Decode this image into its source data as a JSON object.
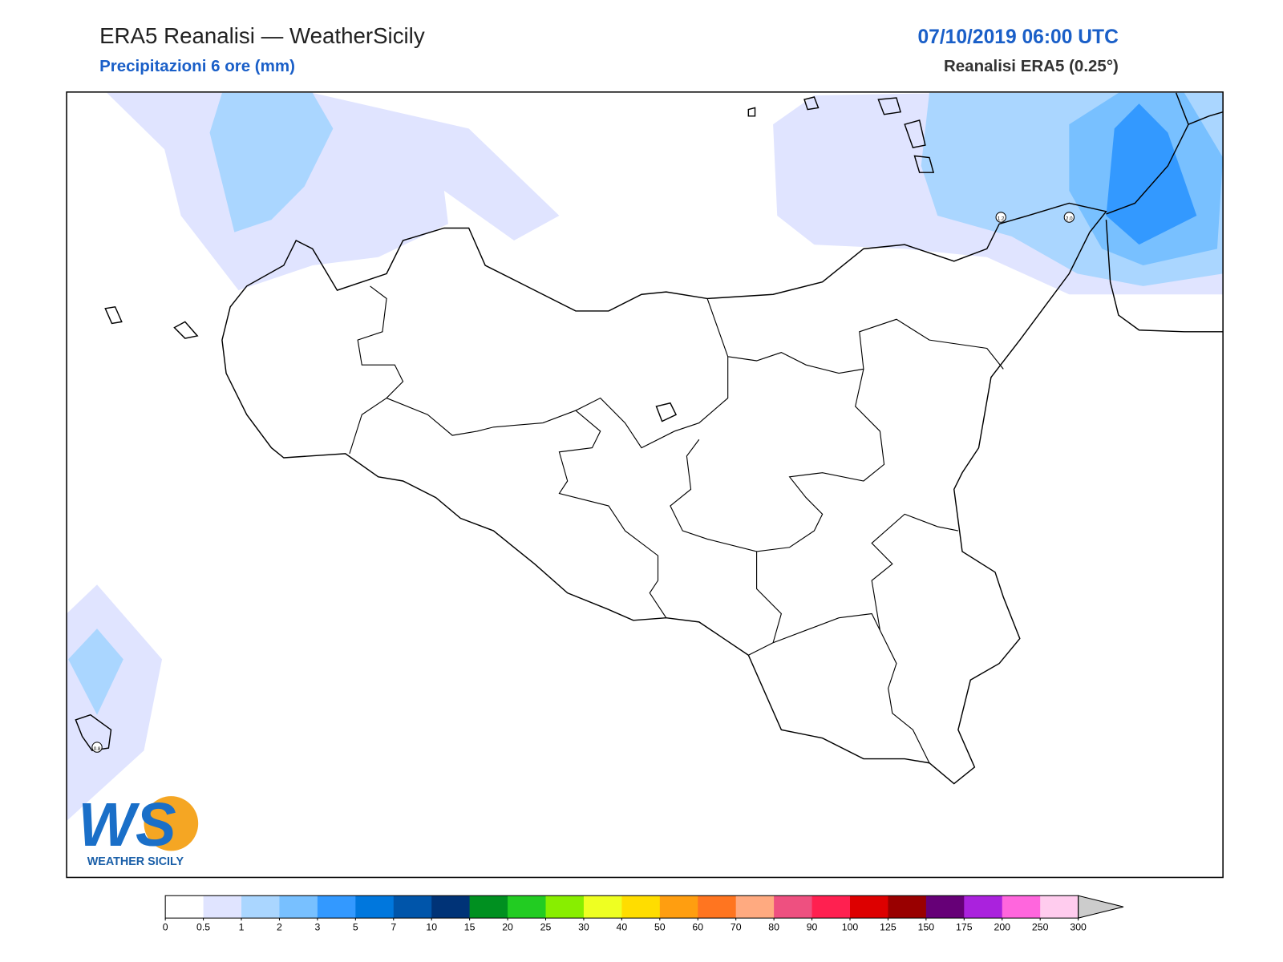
{
  "header": {
    "title": "ERA5 Reanalisi — WeatherSicily",
    "subtitle": "Precipitazioni 6 ore (mm)",
    "date": "07/10/2019 06:00 UTC",
    "model": "Reanalisi ERA5 (0.25°)"
  },
  "map": {
    "point_labels": [
      "1.2",
      "2.0",
      "0.8"
    ]
  },
  "logo": {
    "mark": "WS",
    "text": "WEATHER SICILY"
  },
  "colorbar": {
    "ticks": [
      0,
      0.5,
      1,
      2,
      3,
      5,
      7,
      10,
      15,
      20,
      25,
      30,
      40,
      50,
      60,
      70,
      80,
      90,
      100,
      125,
      150,
      175,
      200,
      250,
      300
    ],
    "colors": [
      "#ffffff",
      "#e0e4ff",
      "#aad6ff",
      "#78c0ff",
      "#3399ff",
      "#0077dd",
      "#0055aa",
      "#003377",
      "#009020",
      "#22cc22",
      "#88ee00",
      "#eeff22",
      "#ffdd00",
      "#ff9e10",
      "#ff7520",
      "#ffaa80",
      "#ee5080",
      "#ff2050",
      "#dd0000",
      "#990000",
      "#660077",
      "#aa22dd",
      "#ff66dd",
      "#ffccee"
    ],
    "over_color": "#cccccc"
  }
}
